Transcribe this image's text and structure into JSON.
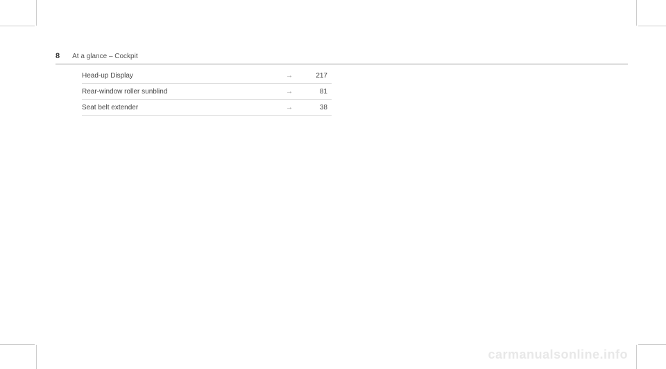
{
  "header": {
    "page_number": "8",
    "section": "At a glance – Cockpit"
  },
  "entries": [
    {
      "label": "Head-up Display",
      "arrow": "→",
      "page": "217"
    },
    {
      "label": "Rear-window roller sunblind",
      "arrow": "→",
      "page": "81"
    },
    {
      "label": "Seat belt extender",
      "arrow": "→",
      "page": "38"
    }
  ],
  "watermark": "carmanualsonline.info"
}
